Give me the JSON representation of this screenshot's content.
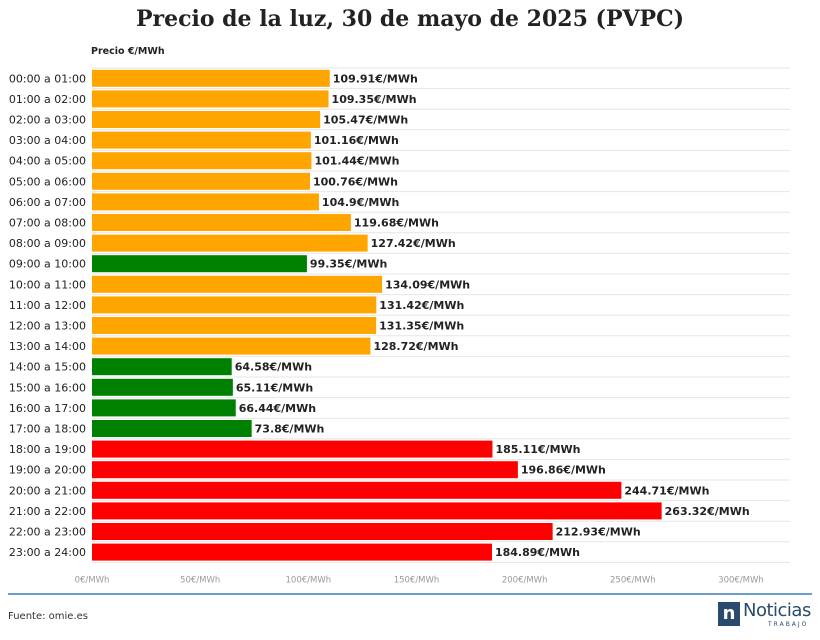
{
  "chart_data": {
    "type": "bar",
    "orientation": "horizontal",
    "title": "Precio de la luz, 30 de mayo de 2025 (PVPC)",
    "ylabel": "Precio €/MWh",
    "xlim": [
      0,
      300
    ],
    "x_ticks": [
      0,
      50,
      100,
      150,
      200,
      250,
      300
    ],
    "x_tick_labels": [
      "0€/MWh",
      "50€/MWh",
      "100€/MWh",
      "150€/MWh",
      "200€/MWh",
      "250€/MWh",
      "300€/MWh"
    ],
    "grid": true,
    "categories": [
      "00:00 a 01:00",
      "01:00 a 02:00",
      "02:00 a 03:00",
      "03:00 a 04:00",
      "04:00 a 05:00",
      "05:00 a 06:00",
      "06:00 a 07:00",
      "07:00 a 08:00",
      "08:00 a 09:00",
      "09:00 a 10:00",
      "10:00 a 11:00",
      "11:00 a 12:00",
      "12:00 a 13:00",
      "13:00 a 14:00",
      "14:00 a 15:00",
      "15:00 a 16:00",
      "16:00 a 17:00",
      "17:00 a 18:00",
      "18:00 a 19:00",
      "19:00 a 20:00",
      "20:00 a 21:00",
      "21:00 a 22:00",
      "22:00 a 23:00",
      "23:00 a 24:00"
    ],
    "values": [
      109.91,
      109.35,
      105.47,
      101.16,
      101.44,
      100.76,
      104.9,
      119.68,
      127.42,
      99.35,
      134.09,
      131.42,
      131.35,
      128.72,
      64.58,
      65.11,
      66.44,
      73.8,
      185.11,
      196.86,
      244.71,
      263.32,
      212.93,
      184.89
    ],
    "value_labels": [
      "109.91€/MWh",
      "109.35€/MWh",
      "105.47€/MWh",
      "101.16€/MWh",
      "101.44€/MWh",
      "100.76€/MWh",
      "104.9€/MWh",
      "119.68€/MWh",
      "127.42€/MWh",
      "99.35€/MWh",
      "134.09€/MWh",
      "131.42€/MWh",
      "131.35€/MWh",
      "128.72€/MWh",
      "64.58€/MWh",
      "65.11€/MWh",
      "66.44€/MWh",
      "73.8€/MWh",
      "185.11€/MWh",
      "196.86€/MWh",
      "244.71€/MWh",
      "263.32€/MWh",
      "212.93€/MWh",
      "184.89€/MWh"
    ],
    "bar_colors": [
      "#ffa500",
      "#ffa500",
      "#ffa500",
      "#ffa500",
      "#ffa500",
      "#ffa500",
      "#ffa500",
      "#ffa500",
      "#ffa500",
      "#008000",
      "#ffa500",
      "#ffa500",
      "#ffa500",
      "#ffa500",
      "#008000",
      "#008000",
      "#008000",
      "#008000",
      "#ff0000",
      "#ff0000",
      "#ff0000",
      "#ff0000",
      "#ff0000",
      "#ff0000"
    ]
  },
  "footer": {
    "source": "Fuente: omie.es",
    "logo_mark": "n",
    "logo_word": "Noticias",
    "logo_sub": "TRABAJO"
  },
  "colors": {
    "rule": "#6b9fc7",
    "logo": "#2a4b6b"
  }
}
